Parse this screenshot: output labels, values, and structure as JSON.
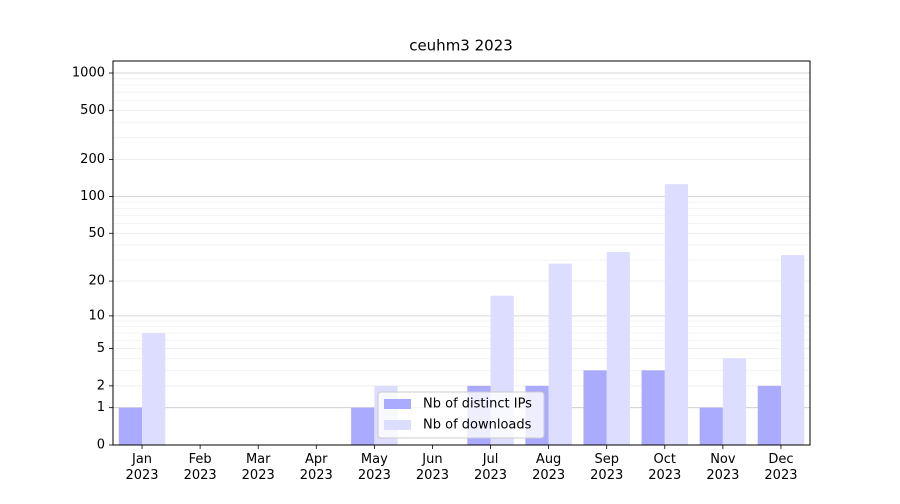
{
  "chart_data": {
    "type": "bar",
    "title": "ceuhm3 2023",
    "categories": [
      "Jan 2023",
      "Feb 2023",
      "Mar 2023",
      "Apr 2023",
      "May 2023",
      "Jun 2023",
      "Jul 2023",
      "Aug 2023",
      "Sep 2023",
      "Oct 2023",
      "Nov 2023",
      "Dec 2023"
    ],
    "series": [
      {
        "name": "Nb of distinct IPs",
        "color": "#aaaaff",
        "values": [
          1,
          0,
          0,
          0,
          1,
          0,
          2,
          2,
          3,
          3,
          1,
          2
        ]
      },
      {
        "name": "Nb of downloads",
        "color": "#ddddff",
        "values": [
          7,
          0,
          0,
          0,
          2,
          0,
          15,
          28,
          35,
          126,
          4,
          33
        ]
      }
    ],
    "yscale": "log1p",
    "ylim": [
      0,
      1250
    ],
    "yticks": [
      0,
      1,
      2,
      5,
      10,
      20,
      50,
      100,
      200,
      500,
      1000
    ],
    "major_grid_yticks": [
      1,
      10,
      100,
      1000
    ],
    "minor_yticks": [
      3,
      4,
      6,
      7,
      8,
      9,
      30,
      40,
      60,
      70,
      80,
      90,
      300,
      400,
      600,
      700,
      800,
      900
    ],
    "grid": true,
    "legend": "lower center"
  }
}
